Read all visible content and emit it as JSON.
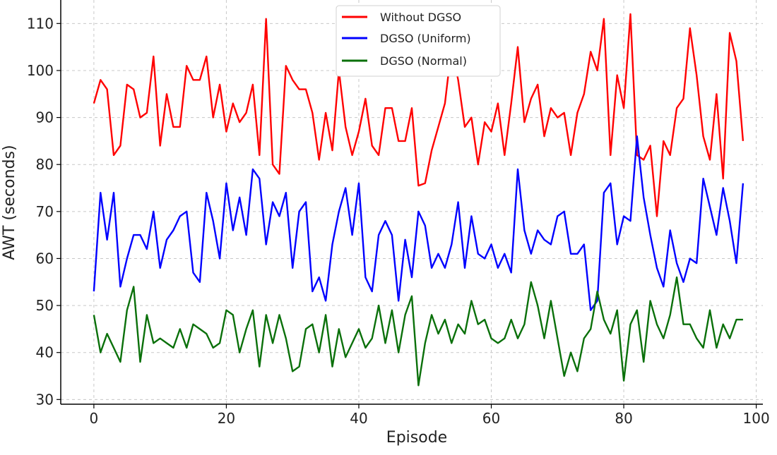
{
  "chart_data": {
    "type": "line",
    "title": "",
    "xlabel": "Episode",
    "ylabel": "AWT (seconds)",
    "xlim": [
      -5,
      101
    ],
    "ylim": [
      29,
      115
    ],
    "xticks": [
      0,
      20,
      40,
      60,
      80,
      100
    ],
    "yticks": [
      30,
      40,
      50,
      60,
      70,
      80,
      90,
      100,
      110
    ],
    "grid": true,
    "legend_position": "top-center",
    "series": [
      {
        "name": "Without DGSO",
        "color": "#ff0000",
        "values": [
          93,
          98,
          96,
          82,
          84,
          97,
          96,
          90,
          91,
          103,
          84,
          95,
          88,
          88,
          101,
          98,
          98,
          103,
          90,
          97,
          87,
          93,
          89,
          91,
          97,
          82,
          111,
          80,
          78,
          101,
          98,
          96,
          96,
          91,
          81,
          91,
          83,
          100,
          88,
          82,
          87,
          94,
          84,
          82,
          92,
          92,
          85,
          85,
          92,
          75.5,
          76,
          83,
          88,
          93,
          105,
          98,
          88,
          90,
          80,
          89,
          87,
          93,
          82,
          93,
          105,
          89,
          94,
          97,
          86,
          92,
          90,
          91,
          82,
          91,
          95,
          104,
          100,
          111,
          82,
          99,
          92,
          112,
          82,
          81,
          84,
          69,
          85,
          82,
          92,
          94,
          109,
          99,
          86,
          81,
          95,
          77,
          108,
          102,
          85
        ],
        "labels_text": "Without DGSO"
      },
      {
        "name": "DGSO (Uniform)",
        "color": "#0000ff",
        "values": [
          53,
          74,
          64,
          74,
          54,
          60,
          65,
          65,
          62,
          70,
          58,
          64,
          66,
          69,
          70,
          57,
          55,
          74,
          68,
          60,
          76,
          66,
          73,
          65,
          79,
          77,
          63,
          72,
          69,
          74,
          58,
          70,
          72,
          53,
          56,
          51,
          63,
          70,
          75,
          65,
          76,
          56,
          53,
          65,
          68,
          65,
          51,
          64,
          56,
          70,
          67,
          58,
          61,
          58,
          63,
          72,
          58,
          69,
          61,
          60,
          63,
          58,
          61,
          57,
          79,
          66,
          61,
          66,
          64,
          63,
          69,
          70,
          61,
          61,
          63,
          49,
          51,
          74,
          76,
          63,
          69,
          68,
          86,
          73,
          65,
          58,
          54,
          66,
          59,
          55,
          60,
          59,
          77,
          71,
          65,
          75,
          68,
          59,
          76
        ]
      },
      {
        "name": "DGSO (Normal)",
        "color": "#0a700a",
        "values": [
          48,
          40,
          44,
          41,
          38,
          49,
          54,
          38,
          48,
          42,
          43,
          42,
          41,
          45,
          41,
          46,
          45,
          44,
          41,
          42,
          49,
          48,
          40,
          45,
          49,
          37,
          48,
          42,
          48,
          43,
          36,
          37,
          45,
          46,
          40,
          48,
          37,
          45,
          39,
          42,
          45,
          41,
          43,
          50,
          42,
          49,
          40,
          48,
          52,
          33,
          42,
          48,
          44,
          47,
          42,
          46,
          44,
          51,
          46,
          47,
          43,
          42,
          43,
          47,
          43,
          46,
          55,
          50,
          43,
          51,
          43,
          35,
          40,
          36,
          43,
          45,
          53,
          47,
          44,
          49,
          34,
          46,
          49,
          38,
          51,
          46,
          43,
          48,
          56,
          46,
          46,
          43,
          41,
          49,
          41,
          46,
          43,
          47,
          47
        ]
      }
    ]
  }
}
